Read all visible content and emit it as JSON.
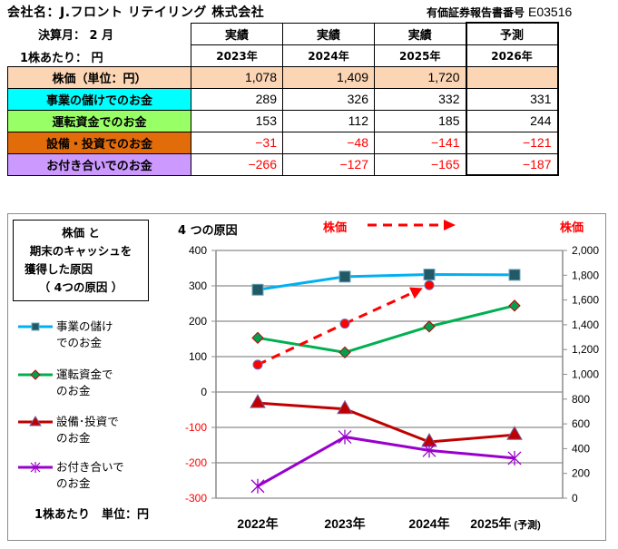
{
  "header": {
    "company_label": "会社名：",
    "company_name": "J.フロント リテイリング 株式会社",
    "doc_number_label": "有価証券報告書番号",
    "doc_number": "E03516",
    "fiscal_month": "決算月： 2 月",
    "per_share": "1株あたり： 円"
  },
  "table": {
    "columns": [
      {
        "kind": "実績",
        "year": "2023年"
      },
      {
        "kind": "実績",
        "year": "2024年"
      },
      {
        "kind": "実績",
        "year": "2025年"
      },
      {
        "kind": "予測",
        "year": "2026年"
      }
    ],
    "rows": [
      {
        "label": "株価（単位：円）",
        "color": "#fcd5b4",
        "values": [
          "1,078",
          "1,409",
          "1,720",
          ""
        ]
      },
      {
        "label": "事業の儲けでのお金",
        "color": "#00ffff",
        "values": [
          "289",
          "326",
          "332",
          "331"
        ]
      },
      {
        "label": "運転資金でのお金",
        "color": "#99ff66",
        "values": [
          "153",
          "112",
          "185",
          "244"
        ]
      },
      {
        "label": "設備・投資でのお金",
        "color": "#e26b0a",
        "values": [
          "−31",
          "−48",
          "−141",
          "−121"
        ]
      },
      {
        "label": "お付き合いでのお金",
        "color": "#cc99ff",
        "values": [
          "−266",
          "−127",
          "−165",
          "−187"
        ]
      }
    ]
  },
  "chart_legend_box": {
    "line1": "株価 と",
    "line2": "期末のキャッシュを",
    "line3": "獲得した原因",
    "line4": "（ 4つの原因 ）"
  },
  "unit_note": "1株あたり　単位：円",
  "chart_data": {
    "type": "line",
    "title_left": "4 つの原因",
    "title_price": "株価",
    "right_axis_title": "株価",
    "categories": [
      "2022年",
      "2023年",
      "2024年",
      "2025年"
    ],
    "category_suffix_last": "(予測)",
    "left_axis": {
      "ylim": [
        -300,
        400
      ],
      "ticks": [
        400,
        300,
        200,
        100,
        0,
        -100,
        -200,
        -300
      ],
      "negative_color": "#ff0000"
    },
    "right_axis": {
      "ylim": [
        0,
        2000
      ],
      "ticks": [
        "2,000",
        "1,800",
        "1,600",
        "1,400",
        "1,200",
        "1,000",
        "800",
        "600",
        "400",
        "200",
        "0"
      ]
    },
    "grid": true,
    "series": [
      {
        "name": "事業の儲けでのお金",
        "legend": [
          "事業の儲け",
          "でのお金"
        ],
        "axis": "left",
        "color": "#00b0f0",
        "marker": "square",
        "marker_color": "#215967",
        "values": [
          289,
          326,
          332,
          331
        ]
      },
      {
        "name": "運転資金でのお金",
        "legend": [
          "運転資金で",
          "のお金"
        ],
        "axis": "left",
        "color": "#00b050",
        "marker": "diamond",
        "marker_color": "#00a050",
        "values": [
          153,
          112,
          185,
          244
        ]
      },
      {
        "name": "設備・投資でのお金",
        "legend": [
          "設備･投資で",
          "のお金"
        ],
        "axis": "left",
        "color": "#c00000",
        "marker": "triangle",
        "marker_color": "#c00000",
        "values": [
          -31,
          -48,
          -141,
          -121
        ]
      },
      {
        "name": "お付き合いでのお金",
        "legend": [
          "お付き合いで",
          "のお金"
        ],
        "axis": "left",
        "color": "#9900cc",
        "marker": "star",
        "marker_color": "#9900cc",
        "values": [
          -266,
          -127,
          -165,
          -187
        ]
      },
      {
        "name": "株価",
        "axis": "right",
        "color": "#ff0000",
        "style": "dashed-arrow",
        "marker": "circle",
        "values": [
          1078,
          1409,
          1720,
          null
        ]
      }
    ]
  }
}
